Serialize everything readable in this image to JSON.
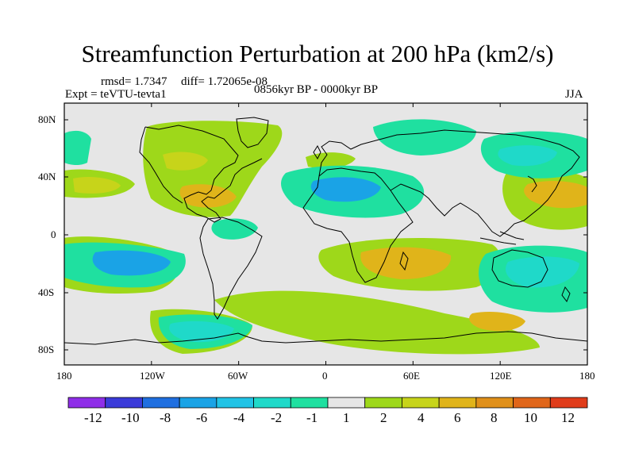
{
  "title": "Streamfunction Perturbation at 200 hPa (km2/s)",
  "stats": {
    "rmsd": "rmsd= 1.7347",
    "diff": "diff= 1.72065e-08"
  },
  "expt": "Expt = teVTU-tevta1",
  "period": "0856kyr BP - 0000kyr BP",
  "season": "JJA",
  "axes": {
    "y_ticks": [
      "80N",
      "40N",
      "0",
      "40S",
      "80S"
    ],
    "x_ticks": [
      "180",
      "120W",
      "60W",
      "0",
      "60E",
      "120E",
      "180"
    ]
  },
  "colorbar": {
    "colors": [
      "#8f2ee8",
      "#3b3bd9",
      "#1f6fe0",
      "#1aa3e6",
      "#21c3e6",
      "#1fd9c9",
      "#1fe0a0",
      "#e6e6e6",
      "#9ed81a",
      "#c7d41a",
      "#e0b41a",
      "#e0901a",
      "#e0661a",
      "#e03c1a"
    ],
    "labels": [
      "-12",
      "-10",
      "-8",
      "-6",
      "-4",
      "-2",
      "-1",
      "1",
      "2",
      "4",
      "6",
      "8",
      "10",
      "12"
    ]
  },
  "palette": {
    "background": "#e6e6e6",
    "pos_light": "#9ed81a",
    "pos_mid": "#c7d41a",
    "pos_strong": "#e0b41a",
    "neg_light": "#1fe0a0",
    "neg_mid": "#1fd9c9",
    "neg_strong": "#21c3e6",
    "neg_deep": "#1aa3e6"
  }
}
